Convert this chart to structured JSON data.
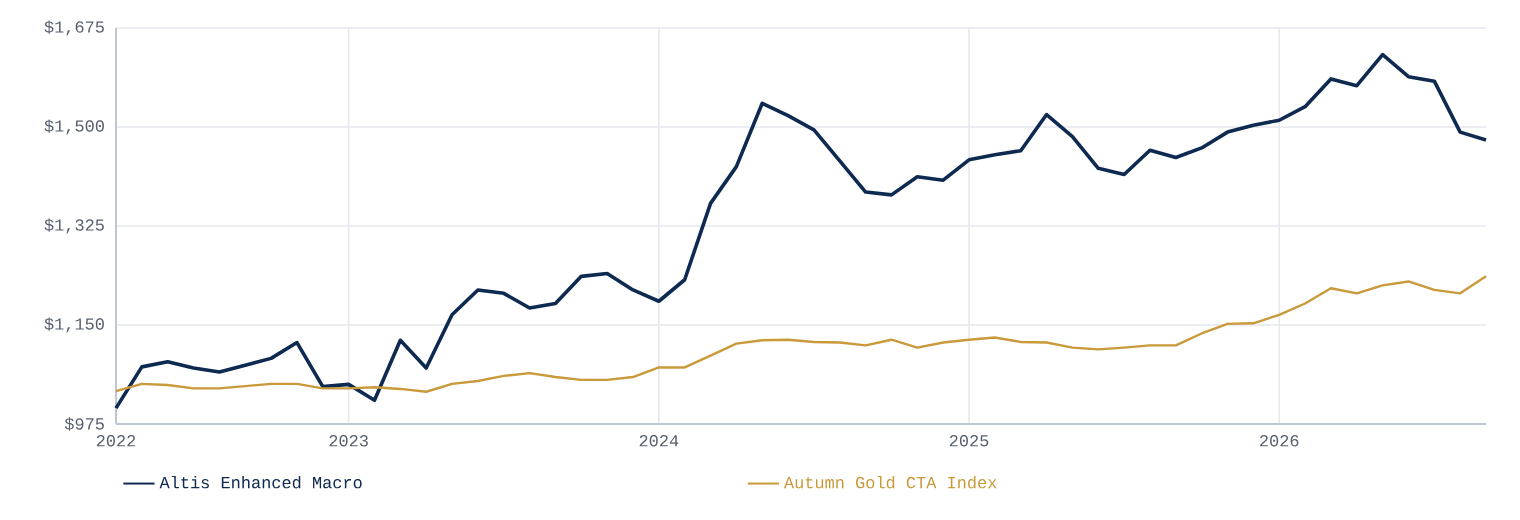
{
  "chart_data": {
    "type": "line",
    "x": [
      "2022-04",
      "2022-05",
      "2022-06",
      "2022-07",
      "2022-08",
      "2022-09",
      "2022-10",
      "2022-11",
      "2022-12",
      "2023-01",
      "2023-02",
      "2023-03",
      "2023-04",
      "2023-05",
      "2023-06",
      "2023-07",
      "2023-08",
      "2023-09",
      "2023-10",
      "2023-11",
      "2023-12",
      "2024-01",
      "2024-02",
      "2024-03",
      "2024-04",
      "2024-05",
      "2024-06",
      "2024-07",
      "2024-08",
      "2024-09",
      "2024-10",
      "2024-11",
      "2024-12",
      "2025-01",
      "2025-02",
      "2025-03",
      "2025-04",
      "2025-05",
      "2025-06",
      "2025-07",
      "2025-08",
      "2025-09",
      "2025-10",
      "2025-11",
      "2025-12",
      "2026-01",
      "2026-02",
      "2026-03",
      "2026-04",
      "2026-05",
      "2026-06",
      "2026-07",
      "2026-08",
      "2026-09"
    ],
    "series": [
      {
        "name": "Altis Enhanced Macro",
        "color": "#0e2a50",
        "values": [
          1003,
          1076,
          1085,
          1074,
          1067,
          1079,
          1091,
          1119,
          1041,
          1045,
          1017,
          1123,
          1074,
          1168,
          1212,
          1206,
          1180,
          1188,
          1236,
          1241,
          1212,
          1192,
          1230,
          1365,
          1430,
          1542,
          1520,
          1495,
          1440,
          1385,
          1380,
          1412,
          1406,
          1442,
          1451,
          1458,
          1522,
          1483,
          1427,
          1416,
          1459,
          1446,
          1463,
          1491,
          1503,
          1512,
          1536,
          1585,
          1573,
          1628,
          1589,
          1581,
          1491,
          1477
        ]
      },
      {
        "name": "Autumn Gold CTA Index",
        "color": "#c9993a",
        "values": [
          1033,
          1046,
          1044,
          1038,
          1038,
          1042,
          1046,
          1046,
          1038,
          1038,
          1040,
          1037,
          1032,
          1046,
          1051,
          1060,
          1065,
          1058,
          1053,
          1053,
          1058,
          1075,
          1075,
          1096,
          1117,
          1123,
          1124,
          1120,
          1119,
          1114,
          1124,
          1110,
          1119,
          1124,
          1128,
          1120,
          1119,
          1110,
          1107,
          1110,
          1114,
          1114,
          1135,
          1152,
          1153,
          1168,
          1188,
          1215,
          1206,
          1220,
          1227,
          1212,
          1206,
          1236
        ]
      }
    ],
    "xlim": [
      "2022-04",
      "2026-09"
    ],
    "xticks": [
      {
        "value": "2022-04",
        "label": "2022"
      },
      "2023",
      "2024",
      "2025",
      "2026"
    ],
    "ylim": [
      975,
      1675
    ],
    "yticks": [
      {
        "value": 975,
        "label": "$975"
      },
      {
        "value": 1150,
        "label": "$1,150"
      },
      {
        "value": 1325,
        "label": "$1,325"
      },
      {
        "value": 1500,
        "label": "$1,500"
      },
      {
        "value": 1675,
        "label": "$1,675"
      }
    ],
    "grid": true,
    "legend": "bottom",
    "marker": "none",
    "line_style": "solid"
  }
}
